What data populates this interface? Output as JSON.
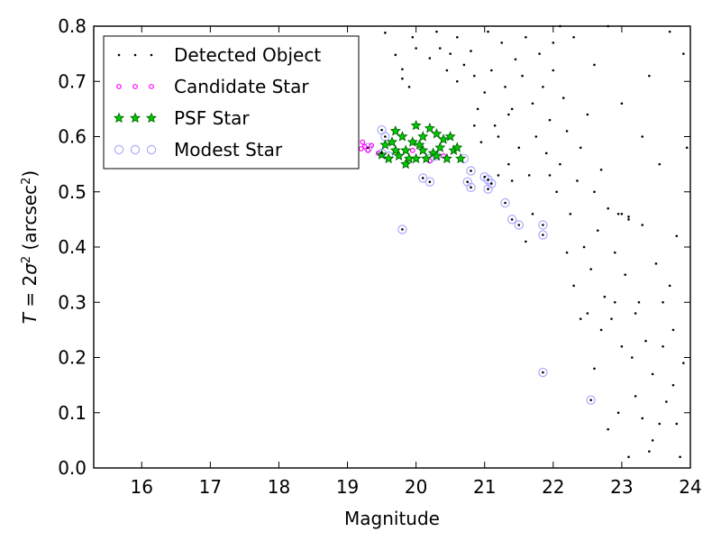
{
  "chart_data": {
    "type": "scatter",
    "xlabel": "Magnitude",
    "ylabel_parts": {
      "prefix": "T",
      "eq": " = 2",
      "sigma": "σ",
      "sup": "2",
      "unit": " (arcsec",
      "unit_sup": "2",
      "close": ")"
    },
    "xlim": [
      15.3,
      24.0
    ],
    "ylim": [
      0.0,
      0.8
    ],
    "xticks": [
      16,
      17,
      18,
      19,
      20,
      21,
      22,
      23,
      24
    ],
    "yticks": [
      0.0,
      0.1,
      0.2,
      0.3,
      0.4,
      0.5,
      0.6,
      0.7,
      0.8
    ],
    "grid": false,
    "legend_position": "top-left",
    "colors": {
      "detected": "#000000",
      "candidate": "#ff00ff",
      "psf_fill": "#00cc00",
      "psf_edge": "#006400",
      "modest": "#aaaaff"
    },
    "legend": [
      {
        "key": "detected",
        "label": "Detected Object"
      },
      {
        "key": "candidate",
        "label": "Candidate Star"
      },
      {
        "key": "psf",
        "label": "PSF Star"
      },
      {
        "key": "modest",
        "label": "Modest Star"
      }
    ],
    "series": [
      {
        "name": "Modest Star",
        "points": [
          [
            19.5,
            0.612
          ],
          [
            19.55,
            0.6
          ],
          [
            19.3,
            0.58
          ],
          [
            19.5,
            0.57
          ],
          [
            19.6,
            0.565
          ],
          [
            20.1,
            0.525
          ],
          [
            20.2,
            0.518
          ],
          [
            19.8,
            0.432
          ],
          [
            20.2,
            0.56
          ],
          [
            20.3,
            0.565
          ],
          [
            20.8,
            0.538
          ],
          [
            20.75,
            0.518
          ],
          [
            20.8,
            0.508
          ],
          [
            21.0,
            0.527
          ],
          [
            21.05,
            0.522
          ],
          [
            21.1,
            0.515
          ],
          [
            21.05,
            0.505
          ],
          [
            21.3,
            0.48
          ],
          [
            21.4,
            0.45
          ],
          [
            21.5,
            0.44
          ],
          [
            21.85,
            0.44
          ],
          [
            21.85,
            0.422
          ],
          [
            21.85,
            0.173
          ],
          [
            22.55,
            0.123
          ],
          [
            20.7,
            0.56
          ]
        ]
      },
      {
        "name": "Candidate Star",
        "points": [
          [
            19.05,
            0.58
          ],
          [
            19.12,
            0.585
          ],
          [
            19.2,
            0.578
          ],
          [
            19.25,
            0.582
          ],
          [
            19.3,
            0.575
          ],
          [
            19.22,
            0.59
          ],
          [
            19.45,
            0.57
          ],
          [
            19.7,
            0.575
          ],
          [
            19.95,
            0.575
          ],
          [
            20.2,
            0.556
          ],
          [
            20.4,
            0.565
          ],
          [
            19.1,
            0.572
          ],
          [
            19.35,
            0.584
          ]
        ]
      },
      {
        "name": "PSF Star",
        "points": [
          [
            19.5,
            0.567
          ],
          [
            19.55,
            0.585
          ],
          [
            19.6,
            0.56
          ],
          [
            19.65,
            0.59
          ],
          [
            19.7,
            0.575
          ],
          [
            19.75,
            0.565
          ],
          [
            19.8,
            0.6
          ],
          [
            19.85,
            0.575
          ],
          [
            19.9,
            0.56
          ],
          [
            19.95,
            0.59
          ],
          [
            20.0,
            0.62
          ],
          [
            20.05,
            0.585
          ],
          [
            20.1,
            0.575
          ],
          [
            20.1,
            0.6
          ],
          [
            20.15,
            0.56
          ],
          [
            20.2,
            0.615
          ],
          [
            20.25,
            0.57
          ],
          [
            20.3,
            0.605
          ],
          [
            20.35,
            0.58
          ],
          [
            20.4,
            0.595
          ],
          [
            20.45,
            0.56
          ],
          [
            20.5,
            0.6
          ],
          [
            20.55,
            0.575
          ],
          [
            20.6,
            0.58
          ],
          [
            20.65,
            0.56
          ],
          [
            19.7,
            0.61
          ],
          [
            20.0,
            0.56
          ],
          [
            19.85,
            0.55
          ],
          [
            20.3,
            0.565
          ]
        ]
      },
      {
        "name": "Detected Object",
        "points": [
          [
            19.5,
            0.612
          ],
          [
            19.55,
            0.6
          ],
          [
            19.3,
            0.58
          ],
          [
            19.5,
            0.57
          ],
          [
            20.1,
            0.525
          ],
          [
            20.2,
            0.518
          ],
          [
            19.8,
            0.432
          ],
          [
            20.8,
            0.538
          ],
          [
            20.75,
            0.518
          ],
          [
            20.8,
            0.508
          ],
          [
            21.0,
            0.527
          ],
          [
            21.05,
            0.522
          ],
          [
            21.1,
            0.515
          ],
          [
            21.05,
            0.505
          ],
          [
            21.3,
            0.48
          ],
          [
            21.4,
            0.45
          ],
          [
            21.5,
            0.44
          ],
          [
            21.85,
            0.44
          ],
          [
            21.85,
            0.422
          ],
          [
            21.85,
            0.173
          ],
          [
            22.55,
            0.123
          ],
          [
            19.55,
            0.788
          ],
          [
            19.7,
            0.748
          ],
          [
            19.8,
            0.722
          ],
          [
            19.8,
            0.705
          ],
          [
            19.9,
            0.69
          ],
          [
            19.95,
            0.78
          ],
          [
            20.0,
            0.76
          ],
          [
            20.2,
            0.742
          ],
          [
            20.3,
            0.79
          ],
          [
            20.35,
            0.76
          ],
          [
            20.45,
            0.72
          ],
          [
            20.5,
            0.75
          ],
          [
            20.6,
            0.78
          ],
          [
            20.6,
            0.7
          ],
          [
            20.7,
            0.73
          ],
          [
            20.8,
            0.755
          ],
          [
            20.85,
            0.71
          ],
          [
            20.9,
            0.65
          ],
          [
            21.0,
            0.68
          ],
          [
            21.05,
            0.79
          ],
          [
            21.1,
            0.72
          ],
          [
            21.15,
            0.62
          ],
          [
            21.2,
            0.6
          ],
          [
            21.25,
            0.77
          ],
          [
            21.3,
            0.69
          ],
          [
            21.35,
            0.55
          ],
          [
            21.4,
            0.65
          ],
          [
            21.45,
            0.74
          ],
          [
            21.5,
            0.58
          ],
          [
            21.55,
            0.71
          ],
          [
            21.6,
            0.78
          ],
          [
            21.65,
            0.53
          ],
          [
            21.7,
            0.66
          ],
          [
            21.75,
            0.6
          ],
          [
            21.8,
            0.75
          ],
          [
            21.85,
            0.69
          ],
          [
            21.9,
            0.57
          ],
          [
            21.95,
            0.63
          ],
          [
            22.0,
            0.72
          ],
          [
            22.05,
            0.5
          ],
          [
            22.1,
            0.55
          ],
          [
            22.15,
            0.67
          ],
          [
            22.2,
            0.61
          ],
          [
            22.25,
            0.46
          ],
          [
            22.3,
            0.78
          ],
          [
            22.35,
            0.52
          ],
          [
            22.4,
            0.58
          ],
          [
            22.45,
            0.4
          ],
          [
            22.5,
            0.64
          ],
          [
            22.55,
            0.36
          ],
          [
            22.6,
            0.5
          ],
          [
            22.65,
            0.43
          ],
          [
            22.7,
            0.54
          ],
          [
            22.75,
            0.31
          ],
          [
            22.8,
            0.47
          ],
          [
            22.85,
            0.27
          ],
          [
            22.9,
            0.39
          ],
          [
            22.95,
            0.46
          ],
          [
            23.0,
            0.22
          ],
          [
            23.05,
            0.35
          ],
          [
            23.1,
            0.45
          ],
          [
            23.15,
            0.2
          ],
          [
            23.2,
            0.13
          ],
          [
            23.25,
            0.3
          ],
          [
            23.3,
            0.44
          ],
          [
            23.35,
            0.23
          ],
          [
            23.4,
            0.03
          ],
          [
            23.45,
            0.17
          ],
          [
            23.5,
            0.37
          ],
          [
            23.55,
            0.08
          ],
          [
            23.6,
            0.22
          ],
          [
            23.65,
            0.12
          ],
          [
            23.7,
            0.33
          ],
          [
            23.75,
            0.15
          ],
          [
            23.8,
            0.42
          ],
          [
            23.85,
            0.02
          ],
          [
            23.9,
            0.75
          ],
          [
            23.95,
            0.58
          ],
          [
            23.0,
            0.46
          ],
          [
            23.1,
            0.455
          ],
          [
            22.9,
            0.3
          ],
          [
            22.7,
            0.25
          ],
          [
            22.6,
            0.18
          ],
          [
            22.5,
            0.28
          ],
          [
            21.6,
            0.41
          ],
          [
            21.7,
            0.46
          ],
          [
            21.4,
            0.52
          ],
          [
            21.2,
            0.53
          ],
          [
            22.2,
            0.39
          ],
          [
            22.3,
            0.33
          ],
          [
            22.4,
            0.27
          ],
          [
            23.6,
            0.3
          ],
          [
            23.75,
            0.25
          ],
          [
            23.3,
            0.09
          ],
          [
            23.45,
            0.05
          ],
          [
            23.2,
            0.28
          ],
          [
            23.9,
            0.19
          ],
          [
            23.8,
            0.08
          ],
          [
            22.95,
            0.1
          ],
          [
            22.8,
            0.07
          ],
          [
            23.1,
            0.02
          ],
          [
            23.55,
            0.55
          ],
          [
            23.4,
            0.71
          ],
          [
            23.7,
            0.79
          ],
          [
            21.35,
            0.64
          ],
          [
            20.95,
            0.59
          ],
          [
            20.85,
            0.62
          ],
          [
            21.95,
            0.53
          ],
          [
            22.1,
            0.8
          ],
          [
            22.8,
            0.8
          ],
          [
            22.0,
            0.77
          ],
          [
            23.3,
            0.6
          ],
          [
            23.0,
            0.66
          ],
          [
            22.6,
            0.73
          ]
        ]
      }
    ]
  }
}
